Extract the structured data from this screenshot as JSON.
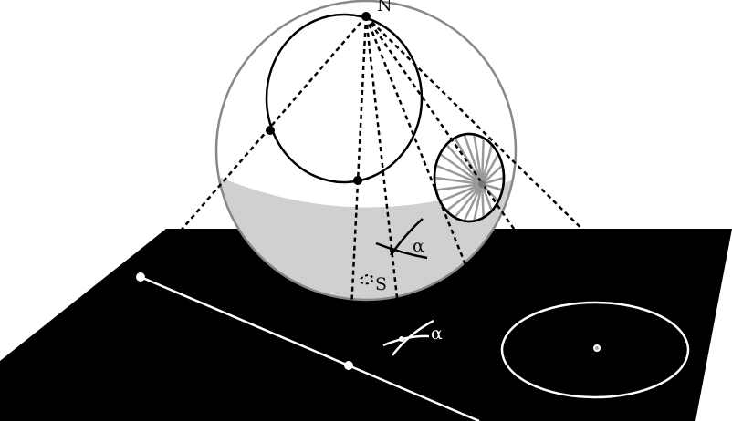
{
  "figure": {
    "labels": {
      "north_pole": "N",
      "south_pole": "S",
      "angle_on_sphere": "α",
      "angle_on_plane": "α"
    }
  },
  "colors": {
    "background": "#ffffff",
    "plane": "#000000",
    "sphere_fill": "#ffffff",
    "sphere_shadow": "#d0d0d0",
    "sphere_outline": "#888888",
    "projection_lines": "#000000",
    "plane_curves": "#ffffff",
    "spoke_lines": "#999999"
  }
}
